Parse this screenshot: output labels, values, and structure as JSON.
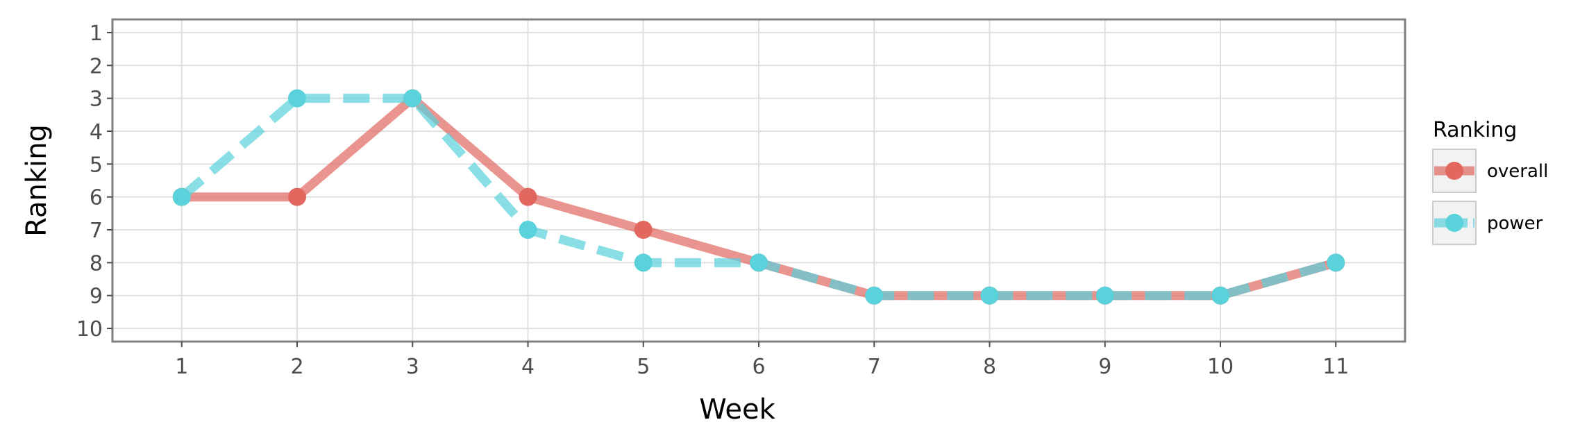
{
  "chart_data": {
    "type": "line",
    "title": "",
    "xlabel": "Week",
    "ylabel": "Ranking",
    "x": [
      1,
      2,
      3,
      4,
      5,
      6,
      7,
      8,
      9,
      10,
      11
    ],
    "xlim": [
      0.4,
      11.6
    ],
    "ylim": [
      10.4,
      0.6
    ],
    "y_reversed": true,
    "x_ticks": [
      "1",
      "2",
      "3",
      "4",
      "5",
      "6",
      "7",
      "8",
      "9",
      "10",
      "11"
    ],
    "y_ticks": [
      "1",
      "2",
      "3",
      "4",
      "5",
      "6",
      "7",
      "8",
      "9",
      "10"
    ],
    "grid": true,
    "legend": {
      "title": "Ranking",
      "placement": "right"
    },
    "series": [
      {
        "name": "overall",
        "color": "#E1675F",
        "line_style": "solid",
        "values": [
          6,
          6,
          3,
          6,
          7,
          8,
          9,
          9,
          9,
          9,
          8
        ]
      },
      {
        "name": "power",
        "color": "#59D2DC",
        "line_style": "dashed",
        "values": [
          6,
          3,
          3,
          7,
          8,
          8,
          9,
          9,
          9,
          9,
          8
        ]
      }
    ]
  }
}
